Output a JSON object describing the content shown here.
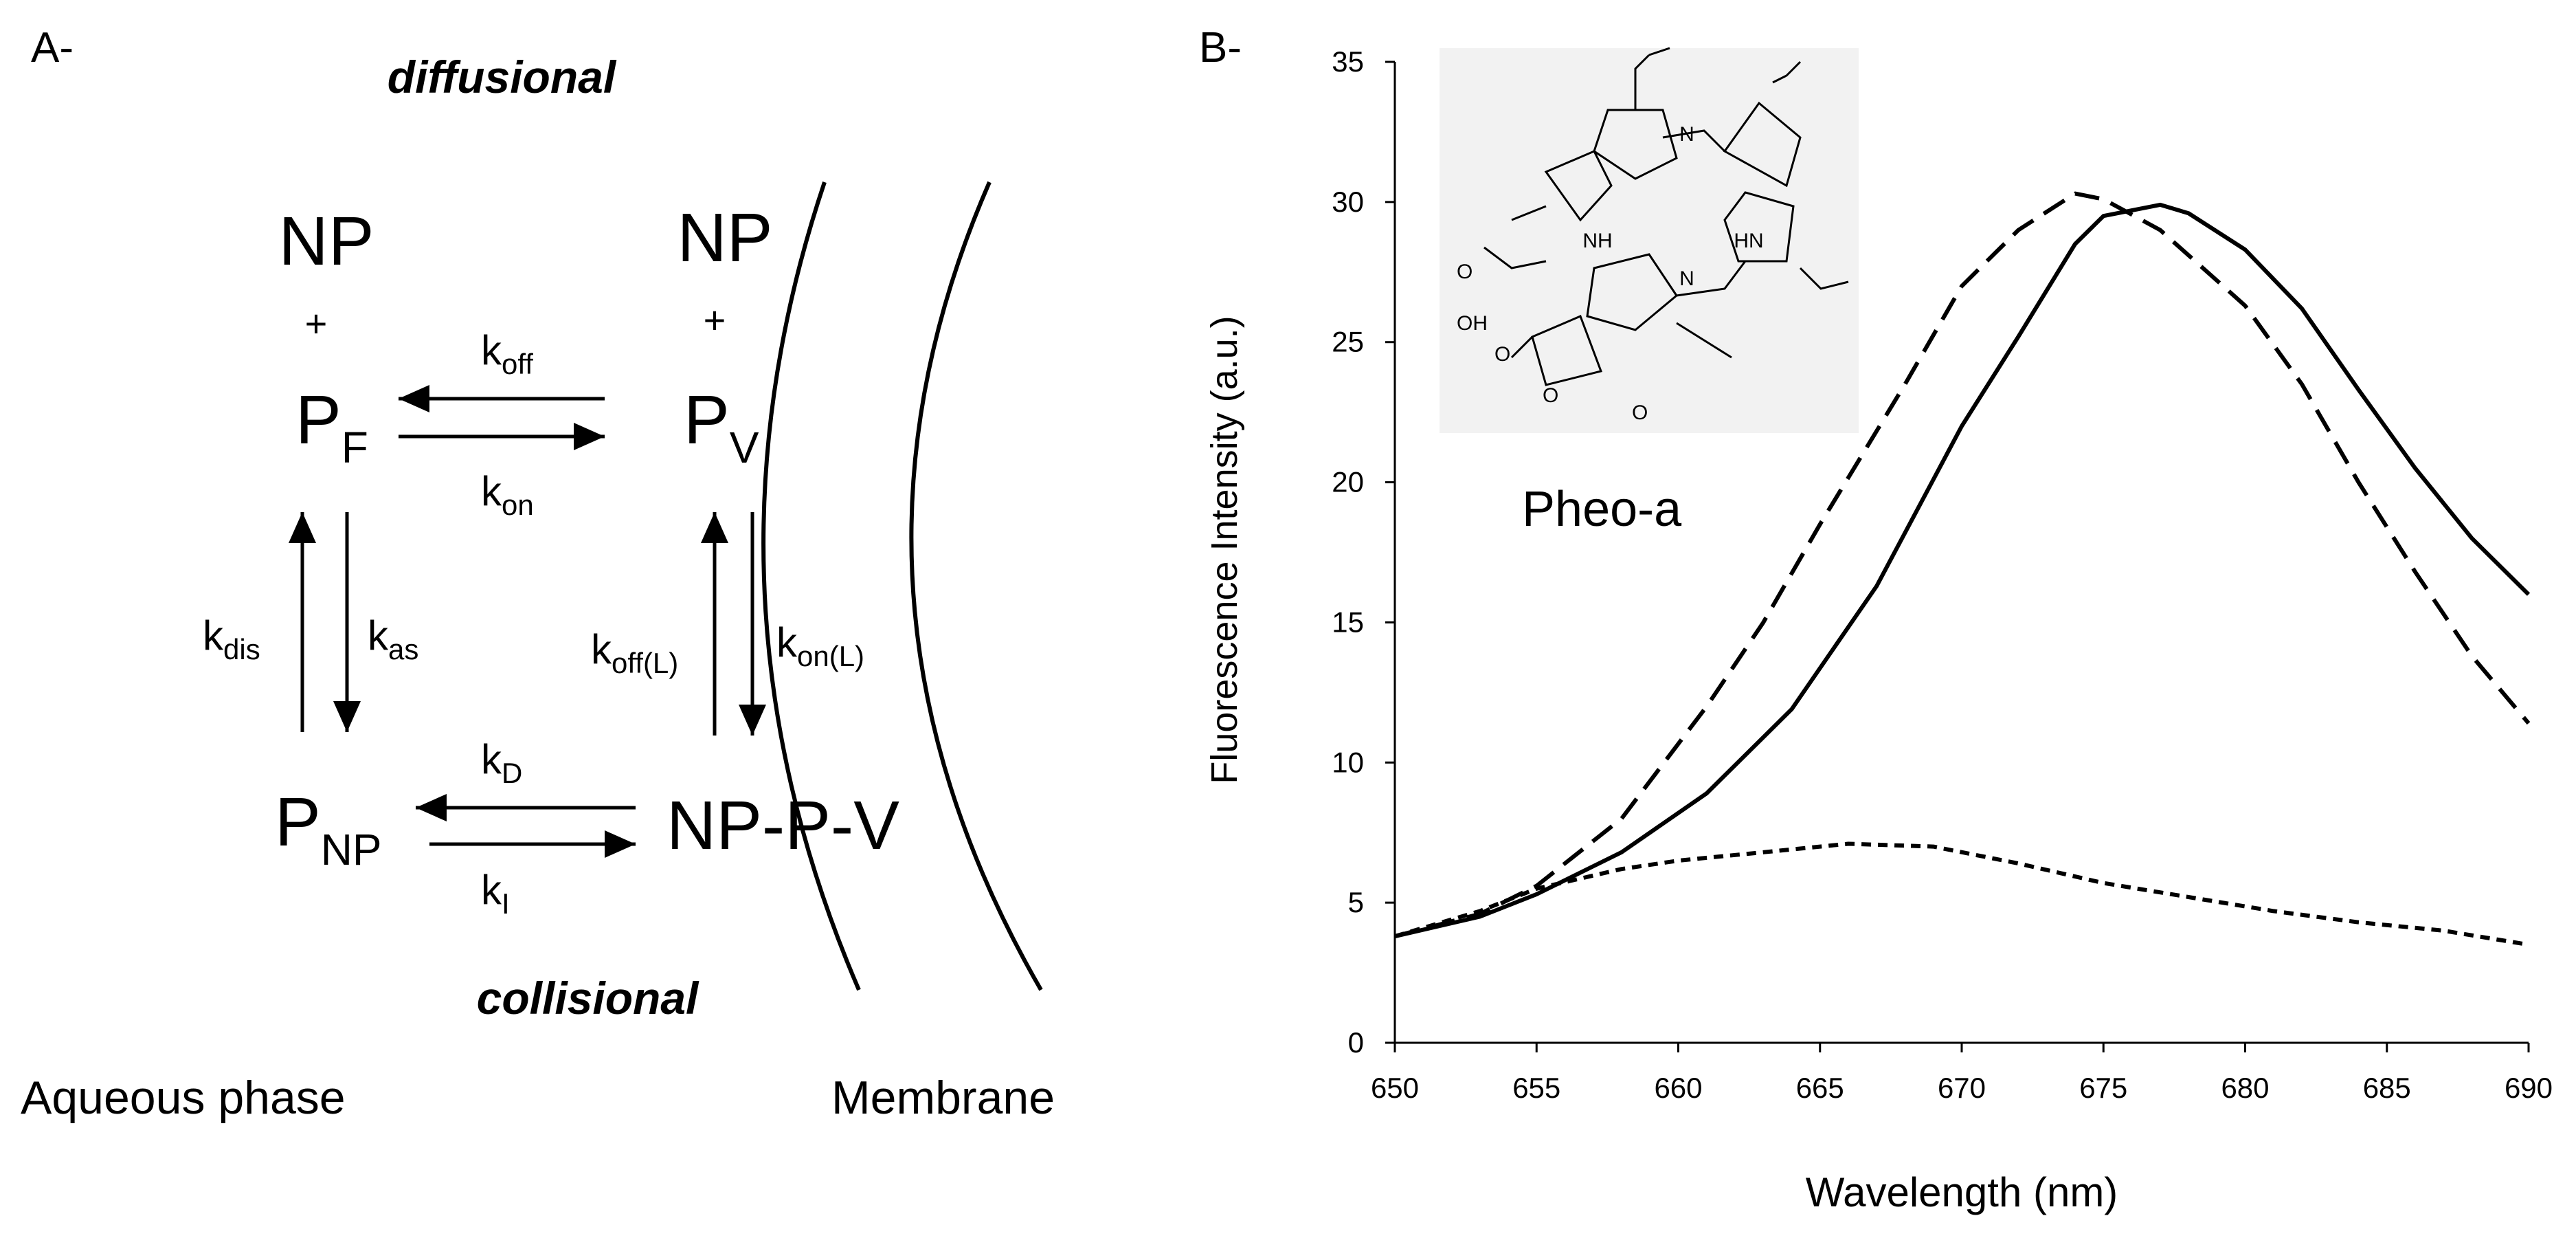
{
  "panel_a": {
    "label": "A-",
    "top_caption": "diffusional",
    "bottom_caption": "collisional",
    "region_left": "Aqueous phase",
    "region_right": "Membrane",
    "species": {
      "np_left": "NP",
      "np_right": "NP",
      "plus": "+",
      "pf_main": "P",
      "pf_sub": "F",
      "pv_main": "P",
      "pv_sub": "V",
      "pnp_main": "P",
      "pnp_sub": "NP",
      "complex": "NP-P-V"
    },
    "rates": {
      "koff_main": "k",
      "koff_sub": "off",
      "kon_main": "k",
      "kon_sub": "on",
      "kdis_main": "k",
      "kdis_sub": "dis",
      "kas_main": "k",
      "kas_sub": "as",
      "koffL_main": "k",
      "koffL_sub": "off(L)",
      "konL_main": "k",
      "konL_sub": "on(L)",
      "kD_main": "k",
      "kD_sub": "D",
      "kI_main": "k",
      "kI_sub": "I"
    }
  },
  "panel_b": {
    "label": "B-",
    "inset_label": "Pheo-a",
    "inset_atoms": {
      "n_top": "N",
      "nh_left": "NH",
      "hn_right": "HN",
      "n_bottom": "N",
      "oh": "OH",
      "o1": "O",
      "o2": "O",
      "o3": "O",
      "o4": "O"
    }
  },
  "chart_data": {
    "type": "line",
    "title": "",
    "xlabel": "Wavelength (nm)",
    "ylabel": "Fluorescence Intensity (a.u.)",
    "xlim": [
      650,
      690
    ],
    "ylim": [
      0,
      35
    ],
    "xticks": [
      650,
      655,
      660,
      665,
      670,
      675,
      680,
      685,
      690
    ],
    "yticks": [
      0,
      5,
      10,
      15,
      20,
      25,
      30,
      35
    ],
    "grid": false,
    "series": [
      {
        "name": "solid",
        "style": "solid",
        "x": [
          650,
          653,
          655,
          658,
          661,
          664,
          667,
          670,
          672,
          674,
          675,
          677,
          678,
          680,
          682,
          684,
          686,
          688,
          690
        ],
        "y": [
          3.8,
          4.5,
          5.3,
          6.8,
          8.9,
          11.9,
          16.3,
          22.0,
          25.2,
          28.5,
          29.5,
          29.9,
          29.6,
          28.3,
          26.2,
          23.3,
          20.5,
          18.0,
          16.0
        ]
      },
      {
        "name": "dashed",
        "style": "dashed",
        "x": [
          650,
          653,
          655,
          658,
          661,
          663,
          665,
          668,
          670,
          672,
          674,
          675,
          677,
          680,
          682,
          684,
          686,
          688,
          690
        ],
        "y": [
          3.8,
          4.6,
          5.6,
          8.0,
          12.0,
          15.0,
          18.5,
          23.5,
          27.0,
          29.0,
          30.3,
          30.1,
          29.0,
          26.3,
          23.5,
          20.0,
          16.8,
          13.8,
          11.4
        ]
      },
      {
        "name": "dotted",
        "style": "dotted",
        "x": [
          650,
          653,
          655,
          658,
          660,
          663,
          666,
          669,
          672,
          675,
          678,
          681,
          684,
          687,
          690
        ],
        "y": [
          3.8,
          4.7,
          5.5,
          6.2,
          6.5,
          6.8,
          7.1,
          7.0,
          6.4,
          5.7,
          5.2,
          4.7,
          4.3,
          4.0,
          3.5
        ]
      }
    ]
  }
}
